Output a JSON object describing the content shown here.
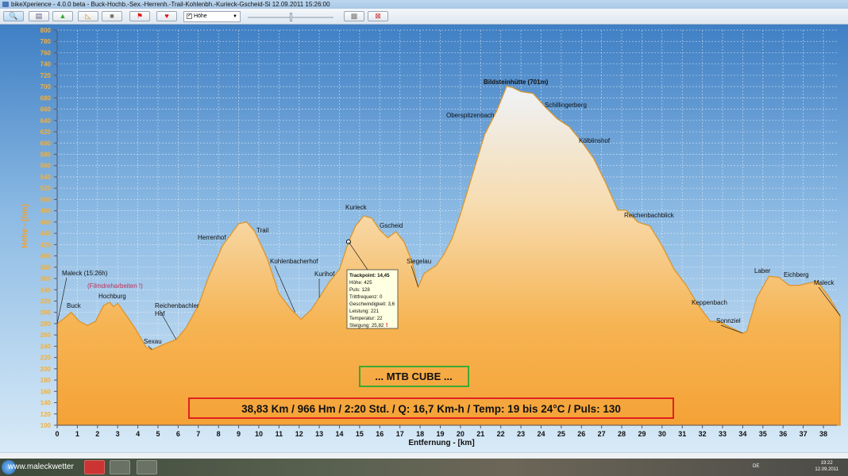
{
  "window": {
    "title": "bikeXperience - 4.0.0 beta - Buck-Hochb.-Sex.-Herrenh.-Trail-Kohlenbh.-Kurieck-Gscheid-Si 12.09.2011 15:26:00"
  },
  "toolbar": {
    "buttons": [
      {
        "icon": "zoom-icon"
      },
      {
        "icon": "print-icon"
      },
      {
        "icon": "export-icon"
      },
      {
        "icon": "ruler-icon"
      },
      {
        "icon": "map-icon"
      },
      {
        "icon": "flag-icon"
      },
      {
        "icon": "heart-icon"
      }
    ],
    "select_value": "Höhe",
    "select_checked": true,
    "slider_value": 0.5,
    "right_buttons": [
      {
        "icon": "settings-icon"
      },
      {
        "icon": "exit-icon"
      }
    ]
  },
  "chart_data": {
    "type": "area",
    "xlabel": "Entfernung - [km]",
    "ylabel": "Höhe - [hm]",
    "xlim": [
      0,
      38.83
    ],
    "ylim": [
      100,
      800
    ],
    "xticks": [
      0,
      1,
      2,
      3,
      4,
      5,
      6,
      7,
      8,
      9,
      10,
      11,
      12,
      13,
      14,
      15,
      16,
      17,
      18,
      19,
      20,
      21,
      22,
      23,
      24,
      25,
      26,
      27,
      28,
      29,
      30,
      31,
      32,
      33,
      34,
      35,
      36,
      37,
      38
    ],
    "yticks": [
      100,
      120,
      140,
      160,
      180,
      200,
      220,
      240,
      260,
      280,
      300,
      320,
      340,
      360,
      380,
      400,
      420,
      440,
      460,
      480,
      500,
      520,
      540,
      560,
      580,
      600,
      620,
      640,
      660,
      680,
      700,
      720,
      740,
      760,
      780,
      800
    ],
    "grid": true,
    "colors": {
      "fill_bottom": "#f5a83a",
      "fill_top": "#eef2f7",
      "line": "#d9962e",
      "axis_text": "#f0b040"
    },
    "x": [
      0,
      0.3,
      0.7,
      1.1,
      1.5,
      1.9,
      2.3,
      2.6,
      2.8,
      3.0,
      3.5,
      3.9,
      4.4,
      4.7,
      5.2,
      5.9,
      6.4,
      7.0,
      7.5,
      8.2,
      9.0,
      9.4,
      9.8,
      10.4,
      11.0,
      11.6,
      12.1,
      12.6,
      13.0,
      13.5,
      14.0,
      14.45,
      14.8,
      15.2,
      15.6,
      16.0,
      16.4,
      16.8,
      17.2,
      17.6,
      17.9,
      18.2,
      18.8,
      19.2,
      19.6,
      20.0,
      20.6,
      21.2,
      21.8,
      22.3,
      22.6,
      23.0,
      23.6,
      24.2,
      24.8,
      25.4,
      26.0,
      26.6,
      27.2,
      27.8,
      28.2,
      28.8,
      29.4,
      30.0,
      30.6,
      31.2,
      31.8,
      32.4,
      32.8,
      33.3,
      34.0,
      34.2,
      34.7,
      35.3,
      35.8,
      36.3,
      36.8,
      37.3,
      37.7,
      38.3,
      38.83
    ],
    "y": [
      280,
      288,
      300,
      284,
      277,
      284,
      312,
      318,
      310,
      316,
      291,
      270,
      239,
      234,
      242,
      252,
      273,
      312,
      362,
      418,
      457,
      460,
      443,
      397,
      333,
      305,
      288,
      305,
      326,
      354,
      376,
      425,
      453,
      471,
      467,
      446,
      432,
      443,
      425,
      390,
      345,
      369,
      383,
      404,
      432,
      474,
      544,
      615,
      657,
      701,
      698,
      691,
      688,
      664,
      643,
      629,
      603,
      573,
      530,
      481,
      481,
      460,
      453,
      418,
      376,
      348,
      312,
      284,
      284,
      275,
      263,
      266,
      326,
      364,
      362,
      348,
      348,
      352,
      355,
      326,
      294
    ],
    "annotations": [
      {
        "text": "Maleck (15:26h)",
        "km": 0,
        "elev": 280,
        "color": "#111"
      },
      {
        "text": "(Filmdreharbeiten !)",
        "color": "#c0305a"
      },
      {
        "text": "Buck",
        "km": 0.7,
        "elev": 300,
        "color": "#111"
      },
      {
        "text": "Hochburg",
        "km": 2.6,
        "elev": 318,
        "color": "#111"
      },
      {
        "text": "Sexau",
        "km": 4.7,
        "elev": 234,
        "color": "#111"
      },
      {
        "text": "Reichenbachler",
        "km": 5.9,
        "elev": 252,
        "color": "#111"
      },
      {
        "text": "Hof",
        "color": "#111"
      },
      {
        "text": "Herrenhof",
        "km": 8.2,
        "elev": 418,
        "color": "#111"
      },
      {
        "text": "Trail",
        "km": 9.4,
        "elev": 460,
        "color": "#111"
      },
      {
        "text": "Kohlenbacherhof",
        "km": 11.8,
        "elev": 300,
        "color": "#111"
      },
      {
        "text": "Kurihof",
        "km": 13.0,
        "elev": 326,
        "color": "#111"
      },
      {
        "text": "Kurieck",
        "km": 15.2,
        "elev": 471,
        "color": "#111"
      },
      {
        "text": "Gscheid",
        "km": 16.8,
        "elev": 443,
        "color": "#111"
      },
      {
        "text": "Siegelau",
        "km": 17.9,
        "elev": 345,
        "color": "#111"
      },
      {
        "text": "Oberspitzenbach",
        "km": 21.2,
        "elev": 615,
        "color": "#111"
      },
      {
        "text": "Bildsteinhütte (701m)",
        "km": 22.3,
        "elev": 701,
        "color": "#111",
        "bold": true
      },
      {
        "text": "Schillingerberg",
        "km": 24.2,
        "elev": 664,
        "color": "#111"
      },
      {
        "text": "Kölblinshof",
        "km": 26.0,
        "elev": 603,
        "color": "#111"
      },
      {
        "text": "Reichenbachblick",
        "km": 28.2,
        "elev": 481,
        "color": "#111"
      },
      {
        "text": "Keppenbach",
        "km": 32.4,
        "elev": 284,
        "color": "#111"
      },
      {
        "text": "Sonnziel",
        "km": 34.0,
        "elev": 263,
        "color": "#111"
      },
      {
        "text": "Laber",
        "km": 35.3,
        "elev": 364,
        "color": "#111"
      },
      {
        "text": "Eichberg",
        "km": 36.8,
        "elev": 348,
        "color": "#111"
      },
      {
        "text": "Maleck",
        "km": 38.83,
        "elev": 294,
        "color": "#111"
      }
    ],
    "tooltip": {
      "km": 14.45,
      "elev": 425,
      "lines": [
        "Trackpoint: 14,45",
        "Höhe: 425",
        "Puls: 128",
        "Trittfrequenz: 0",
        "Geschwindigkeit: 3,6",
        "Leistung: 221",
        "Temperatur: 22",
        "Steigung: 25,82"
      ],
      "warning": "!"
    },
    "boxes": {
      "bike": {
        "text": "... MTB CUBE ...",
        "color": "#3aaa35"
      },
      "summary": {
        "text": "38,83 Km  /  966 Hm  /  2:20 Std.  /  Q: 16,7 Km-h  /  Temp: 19 bis 24°C  /  Puls: 130",
        "color": "#e02020"
      }
    }
  },
  "taskbar": {
    "url_text": "www.maleckwetter",
    "language": "DE",
    "time": "19:22",
    "date": "12.09.2011"
  }
}
